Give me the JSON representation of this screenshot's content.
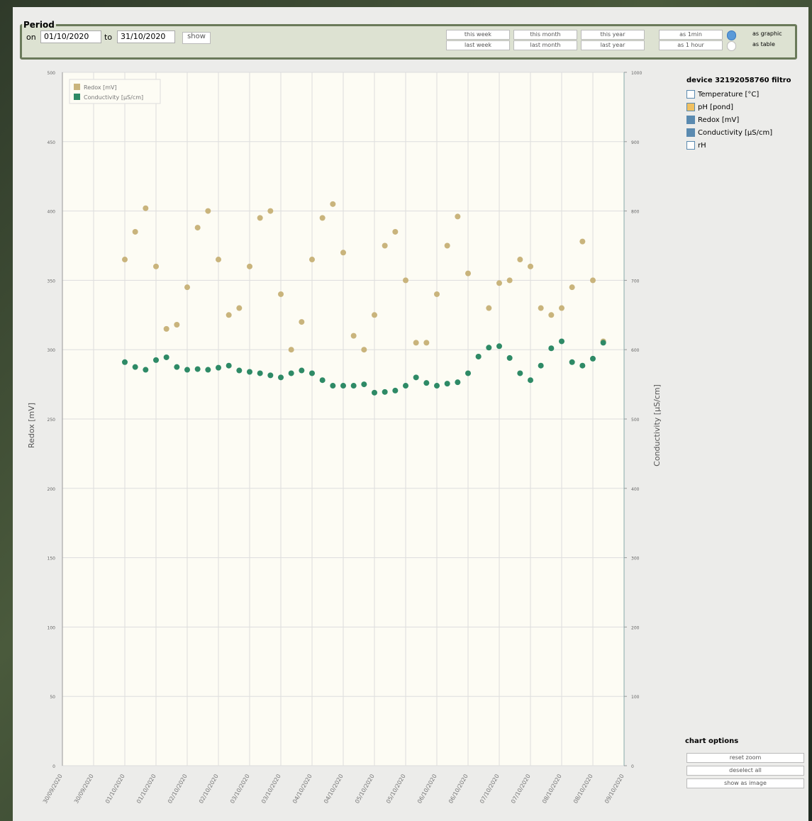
{
  "toolbar": {
    "legend": "Period",
    "from_label": "on",
    "from": "01/10/2020",
    "to_label": "to",
    "to": "31/10/2020",
    "show": "show",
    "ranges": [
      [
        "this week",
        "this month",
        "this year"
      ],
      [
        "last week",
        "last month",
        "last year"
      ]
    ],
    "granularity": [
      "as 1min",
      "as 1 hour"
    ],
    "views": [
      "as graphic",
      "as table"
    ]
  },
  "sidebar": {
    "title": "device 32192058760 filtro",
    "channels": [
      "Temperature [°C]",
      "pH [pond]",
      "Redox [mV]",
      "Conductivity [µS/cm]",
      "rH"
    ],
    "options_title": "chart options",
    "buttons": [
      "reset zoom",
      "deselect all",
      "show as image"
    ]
  },
  "chart_data": {
    "type": "scatter",
    "ylabel": "Redox [mV]",
    "y2label": "Conductivity [µS/cm]",
    "grid": true,
    "legend": "upper left",
    "x": [
      24,
      28,
      32,
      36,
      40,
      44,
      48,
      52,
      56,
      60,
      64,
      68,
      72,
      76,
      80,
      84,
      88,
      92,
      96,
      100,
      104,
      108,
      112,
      116,
      120,
      124,
      128,
      132,
      136,
      140,
      144,
      148,
      152,
      156,
      160,
      164,
      168,
      172,
      176,
      180,
      184,
      188,
      192,
      196,
      200,
      204,
      208
    ],
    "xlim": [
      0,
      216
    ],
    "xticks": [
      {
        "value": 0,
        "label": "30/09/2020"
      },
      {
        "value": 12,
        "label": "30/09/2020"
      },
      {
        "value": 24,
        "label": "01/10/2020"
      },
      {
        "value": 36,
        "label": "01/10/2020"
      },
      {
        "value": 48,
        "label": "02/10/2020"
      },
      {
        "value": 60,
        "label": "02/10/2020"
      },
      {
        "value": 72,
        "label": "03/10/2020"
      },
      {
        "value": 84,
        "label": "03/10/2020"
      },
      {
        "value": 96,
        "label": "04/10/2020"
      },
      {
        "value": 108,
        "label": "04/10/2020"
      },
      {
        "value": 120,
        "label": "05/10/2020"
      },
      {
        "value": 132,
        "label": "05/10/2020"
      },
      {
        "value": 144,
        "label": "06/10/2020"
      },
      {
        "value": 156,
        "label": "06/10/2020"
      },
      {
        "value": 168,
        "label": "07/10/2020"
      },
      {
        "value": 180,
        "label": "07/10/2020"
      },
      {
        "value": 192,
        "label": "08/10/2020"
      },
      {
        "value": 204,
        "label": "08/10/2020"
      },
      {
        "value": 216,
        "label": "09/10/2020"
      }
    ],
    "ylim": [
      0,
      500
    ],
    "yticks": [
      0,
      50,
      100,
      150,
      200,
      250,
      300,
      350,
      400,
      450,
      500
    ],
    "y2lim": [
      0,
      1000
    ],
    "y2ticks": [
      0,
      100,
      200,
      300,
      400,
      500,
      600,
      700,
      800,
      900,
      1000
    ],
    "series": [
      {
        "name": "Redox [mV]",
        "color": "#c9b47c",
        "values": [
          365,
          385,
          402,
          360,
          315,
          318,
          345,
          388,
          400,
          365,
          325,
          330,
          360,
          395,
          400,
          340,
          300,
          320,
          365,
          395,
          405,
          370,
          310,
          300,
          325,
          375,
          385,
          350,
          305,
          305,
          340,
          375,
          396,
          355,
          295,
          330,
          348,
          350,
          365,
          360,
          330,
          325,
          330,
          345,
          378,
          350,
          306
        ]
      },
      {
        "name": "Conductivity [µS/cm]",
        "color": "#2e8a66",
        "axis": "y2",
        "values": [
          582,
          575,
          571,
          585,
          589,
          575,
          571,
          572,
          571,
          574,
          577,
          570,
          568,
          566,
          563,
          560,
          566,
          570,
          566,
          556,
          548,
          548,
          548,
          550,
          538,
          539,
          541,
          548,
          560,
          552,
          548,
          551,
          553,
          566,
          590,
          603,
          605,
          588,
          566,
          556,
          577,
          602,
          612,
          582,
          577,
          587,
          610
        ]
      }
    ]
  }
}
